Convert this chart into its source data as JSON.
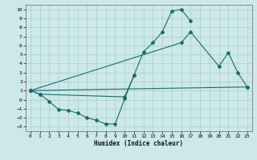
{
  "background_color": "#cce8e8",
  "grid_color": "#aacccc",
  "line_color": "#1a6b6b",
  "xlabel": "Humidex (Indice chaleur)",
  "xlim": [
    -0.5,
    23.5
  ],
  "ylim": [
    -3.5,
    10.5
  ],
  "xticks": [
    0,
    1,
    2,
    3,
    4,
    5,
    6,
    7,
    8,
    9,
    10,
    11,
    12,
    13,
    14,
    15,
    16,
    17,
    18,
    19,
    20,
    21,
    22,
    23
  ],
  "yticks": [
    -3,
    -2,
    -1,
    0,
    1,
    2,
    3,
    4,
    5,
    6,
    7,
    8,
    9,
    10
  ],
  "s1x": [
    0,
    1,
    2,
    3,
    4,
    5,
    6,
    7,
    8,
    9,
    10,
    11
  ],
  "s1y": [
    1.0,
    0.6,
    -0.2,
    -1.1,
    -1.2,
    -1.5,
    -2.0,
    -2.3,
    -2.7,
    -2.7,
    0.1,
    2.7
  ],
  "s2x": [
    0,
    1,
    10,
    11,
    12,
    13,
    14,
    15,
    16,
    17
  ],
  "s2y": [
    1.0,
    0.6,
    0.3,
    2.7,
    5.3,
    6.3,
    7.5,
    9.8,
    10.0,
    8.7
  ],
  "s3x": [
    0,
    16,
    17,
    20,
    21,
    22,
    23
  ],
  "s3y": [
    1.0,
    6.3,
    7.5,
    3.7,
    5.2,
    3.0,
    1.4
  ],
  "s4x": [
    0,
    23
  ],
  "s4y": [
    1.0,
    1.4
  ]
}
